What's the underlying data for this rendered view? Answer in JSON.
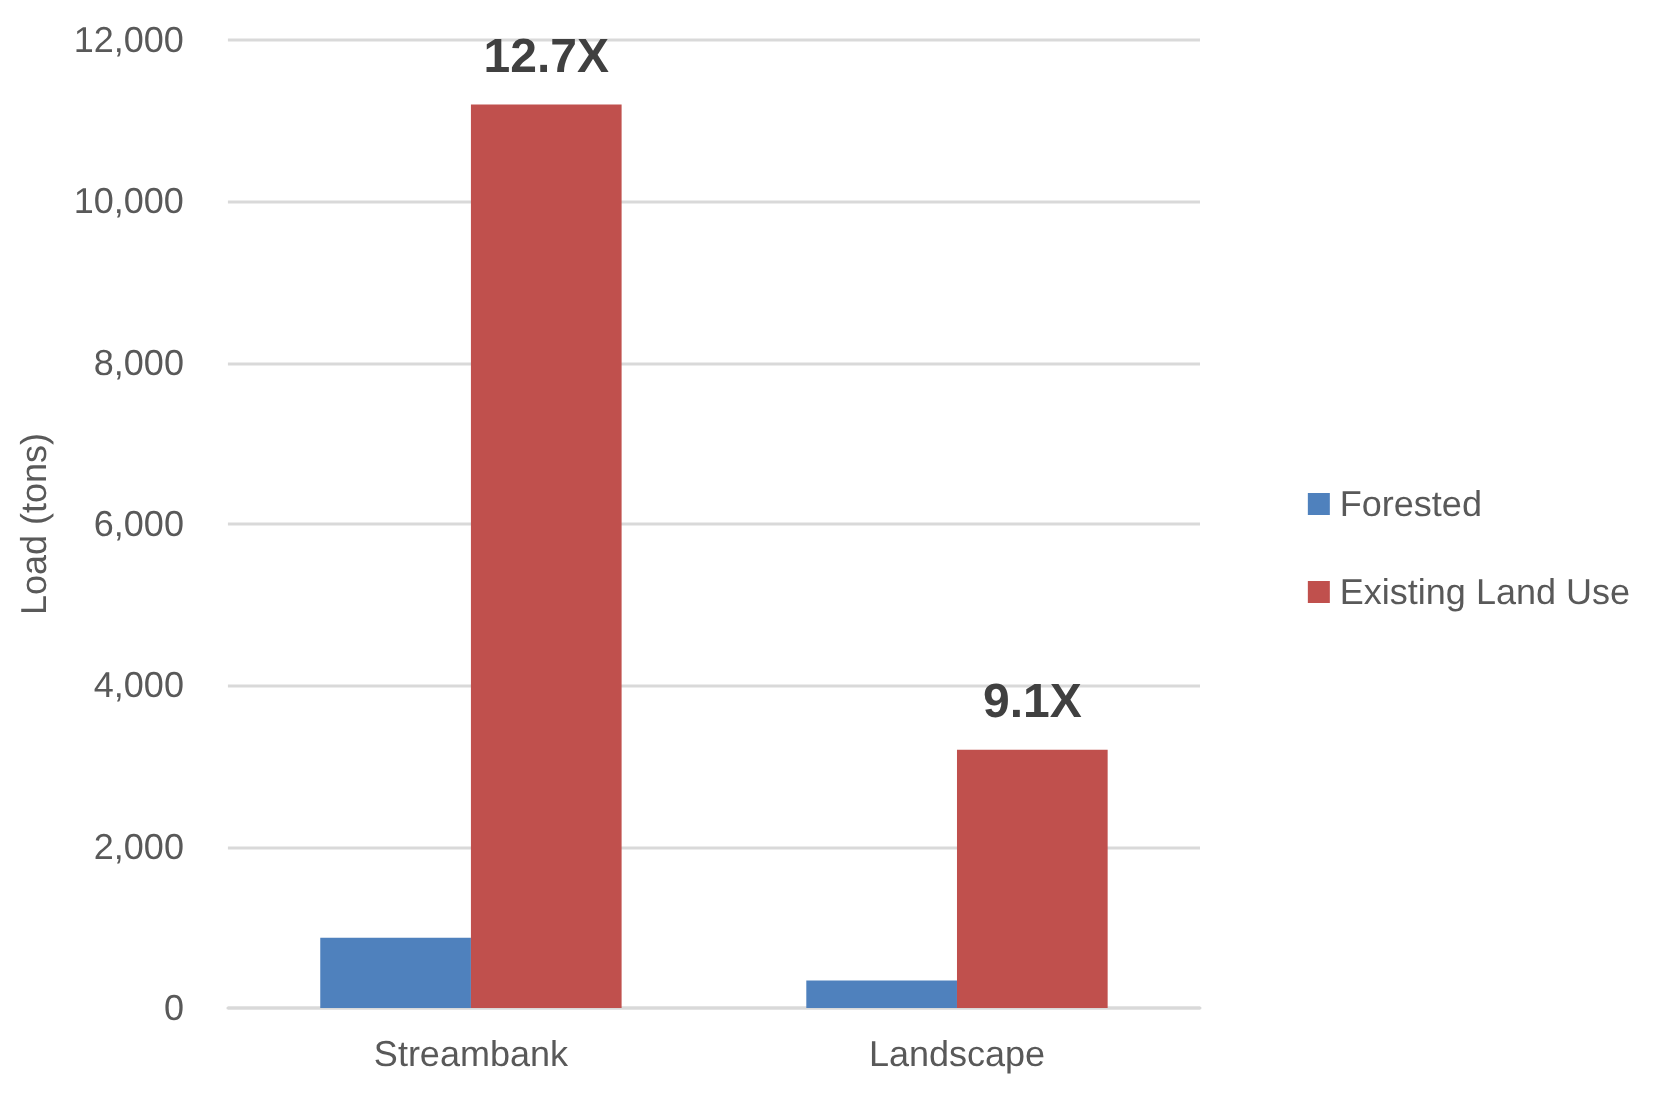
{
  "chart_data": {
    "type": "bar",
    "ylabel": "Load (tons)",
    "categories": [
      "Streambank",
      "Landscape"
    ],
    "series": [
      {
        "name": "Forested",
        "color": "#4f81bd",
        "values": [
          870,
          340
        ]
      },
      {
        "name": "Existing Land Use",
        "color": "#c0504d",
        "values": [
          11200,
          3200
        ]
      }
    ],
    "ylim": [
      0,
      12000
    ],
    "yticks": [
      0,
      {
        "value": 2000,
        "label": "2,000"
      },
      {
        "value": 4000,
        "label": "4,000"
      },
      {
        "value": 6000,
        "label": "6,000"
      },
      {
        "value": 8000,
        "label": "8,000"
      },
      {
        "value": 10000,
        "label": "10,000"
      },
      {
        "value": 12000,
        "label": "12,000"
      }
    ],
    "grid": "y",
    "legend": "right",
    "annotations": [
      {
        "text": "12.7X",
        "x": "Streambank",
        "y": 11200
      },
      {
        "text": "9.1X",
        "x": "Landscape",
        "y": 3200
      }
    ]
  }
}
